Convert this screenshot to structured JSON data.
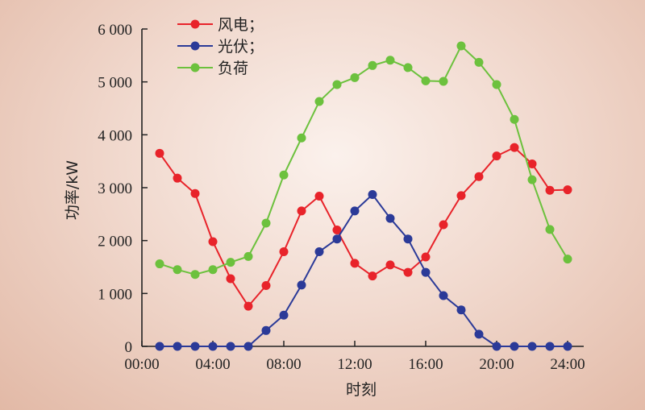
{
  "chart_data": {
    "type": "line",
    "xlabel": "时刻",
    "ylabel": "功率/kW",
    "xlim": [
      0,
      24
    ],
    "ylim": [
      0,
      6000
    ],
    "x_ticks": [
      0,
      4,
      8,
      12,
      16,
      20,
      24
    ],
    "x_tick_labels": [
      "00:00",
      "04:00",
      "08:00",
      "12:00",
      "16:00",
      "20:00",
      "24:00"
    ],
    "y_ticks": [
      0,
      1000,
      2000,
      3000,
      4000,
      5000,
      6000
    ],
    "y_tick_labels": [
      "0",
      "1 000",
      "2 000",
      "3 000",
      "4 000",
      "5 000",
      "6 000"
    ],
    "legend_position": "top-left",
    "x": [
      1,
      2,
      3,
      4,
      5,
      6,
      7,
      8,
      9,
      10,
      11,
      12,
      13,
      14,
      15,
      16,
      17,
      18,
      19,
      20,
      21,
      22,
      23,
      24
    ],
    "series": [
      {
        "name": "风电；",
        "color": "#e8232a",
        "values": [
          3650,
          3180,
          2890,
          1980,
          1280,
          760,
          1150,
          1790,
          2560,
          2840,
          2200,
          1570,
          1330,
          1540,
          1400,
          1690,
          2300,
          2850,
          3210,
          3600,
          3760,
          3450,
          2950,
          2960
        ]
      },
      {
        "name": "光伏；",
        "color": "#2b3a98",
        "values": [
          0,
          0,
          0,
          0,
          0,
          0,
          300,
          590,
          1160,
          1790,
          2030,
          2560,
          2870,
          2420,
          2030,
          1400,
          960,
          690,
          230,
          0,
          0,
          0,
          0,
          0
        ]
      },
      {
        "name": "负荷",
        "color": "#6cc13d",
        "values": [
          1560,
          1450,
          1360,
          1450,
          1590,
          1700,
          2330,
          3240,
          3940,
          4630,
          4950,
          5080,
          5310,
          5410,
          5270,
          5020,
          5010,
          5680,
          5370,
          4950,
          4290,
          3150,
          2210,
          1650
        ]
      }
    ]
  }
}
